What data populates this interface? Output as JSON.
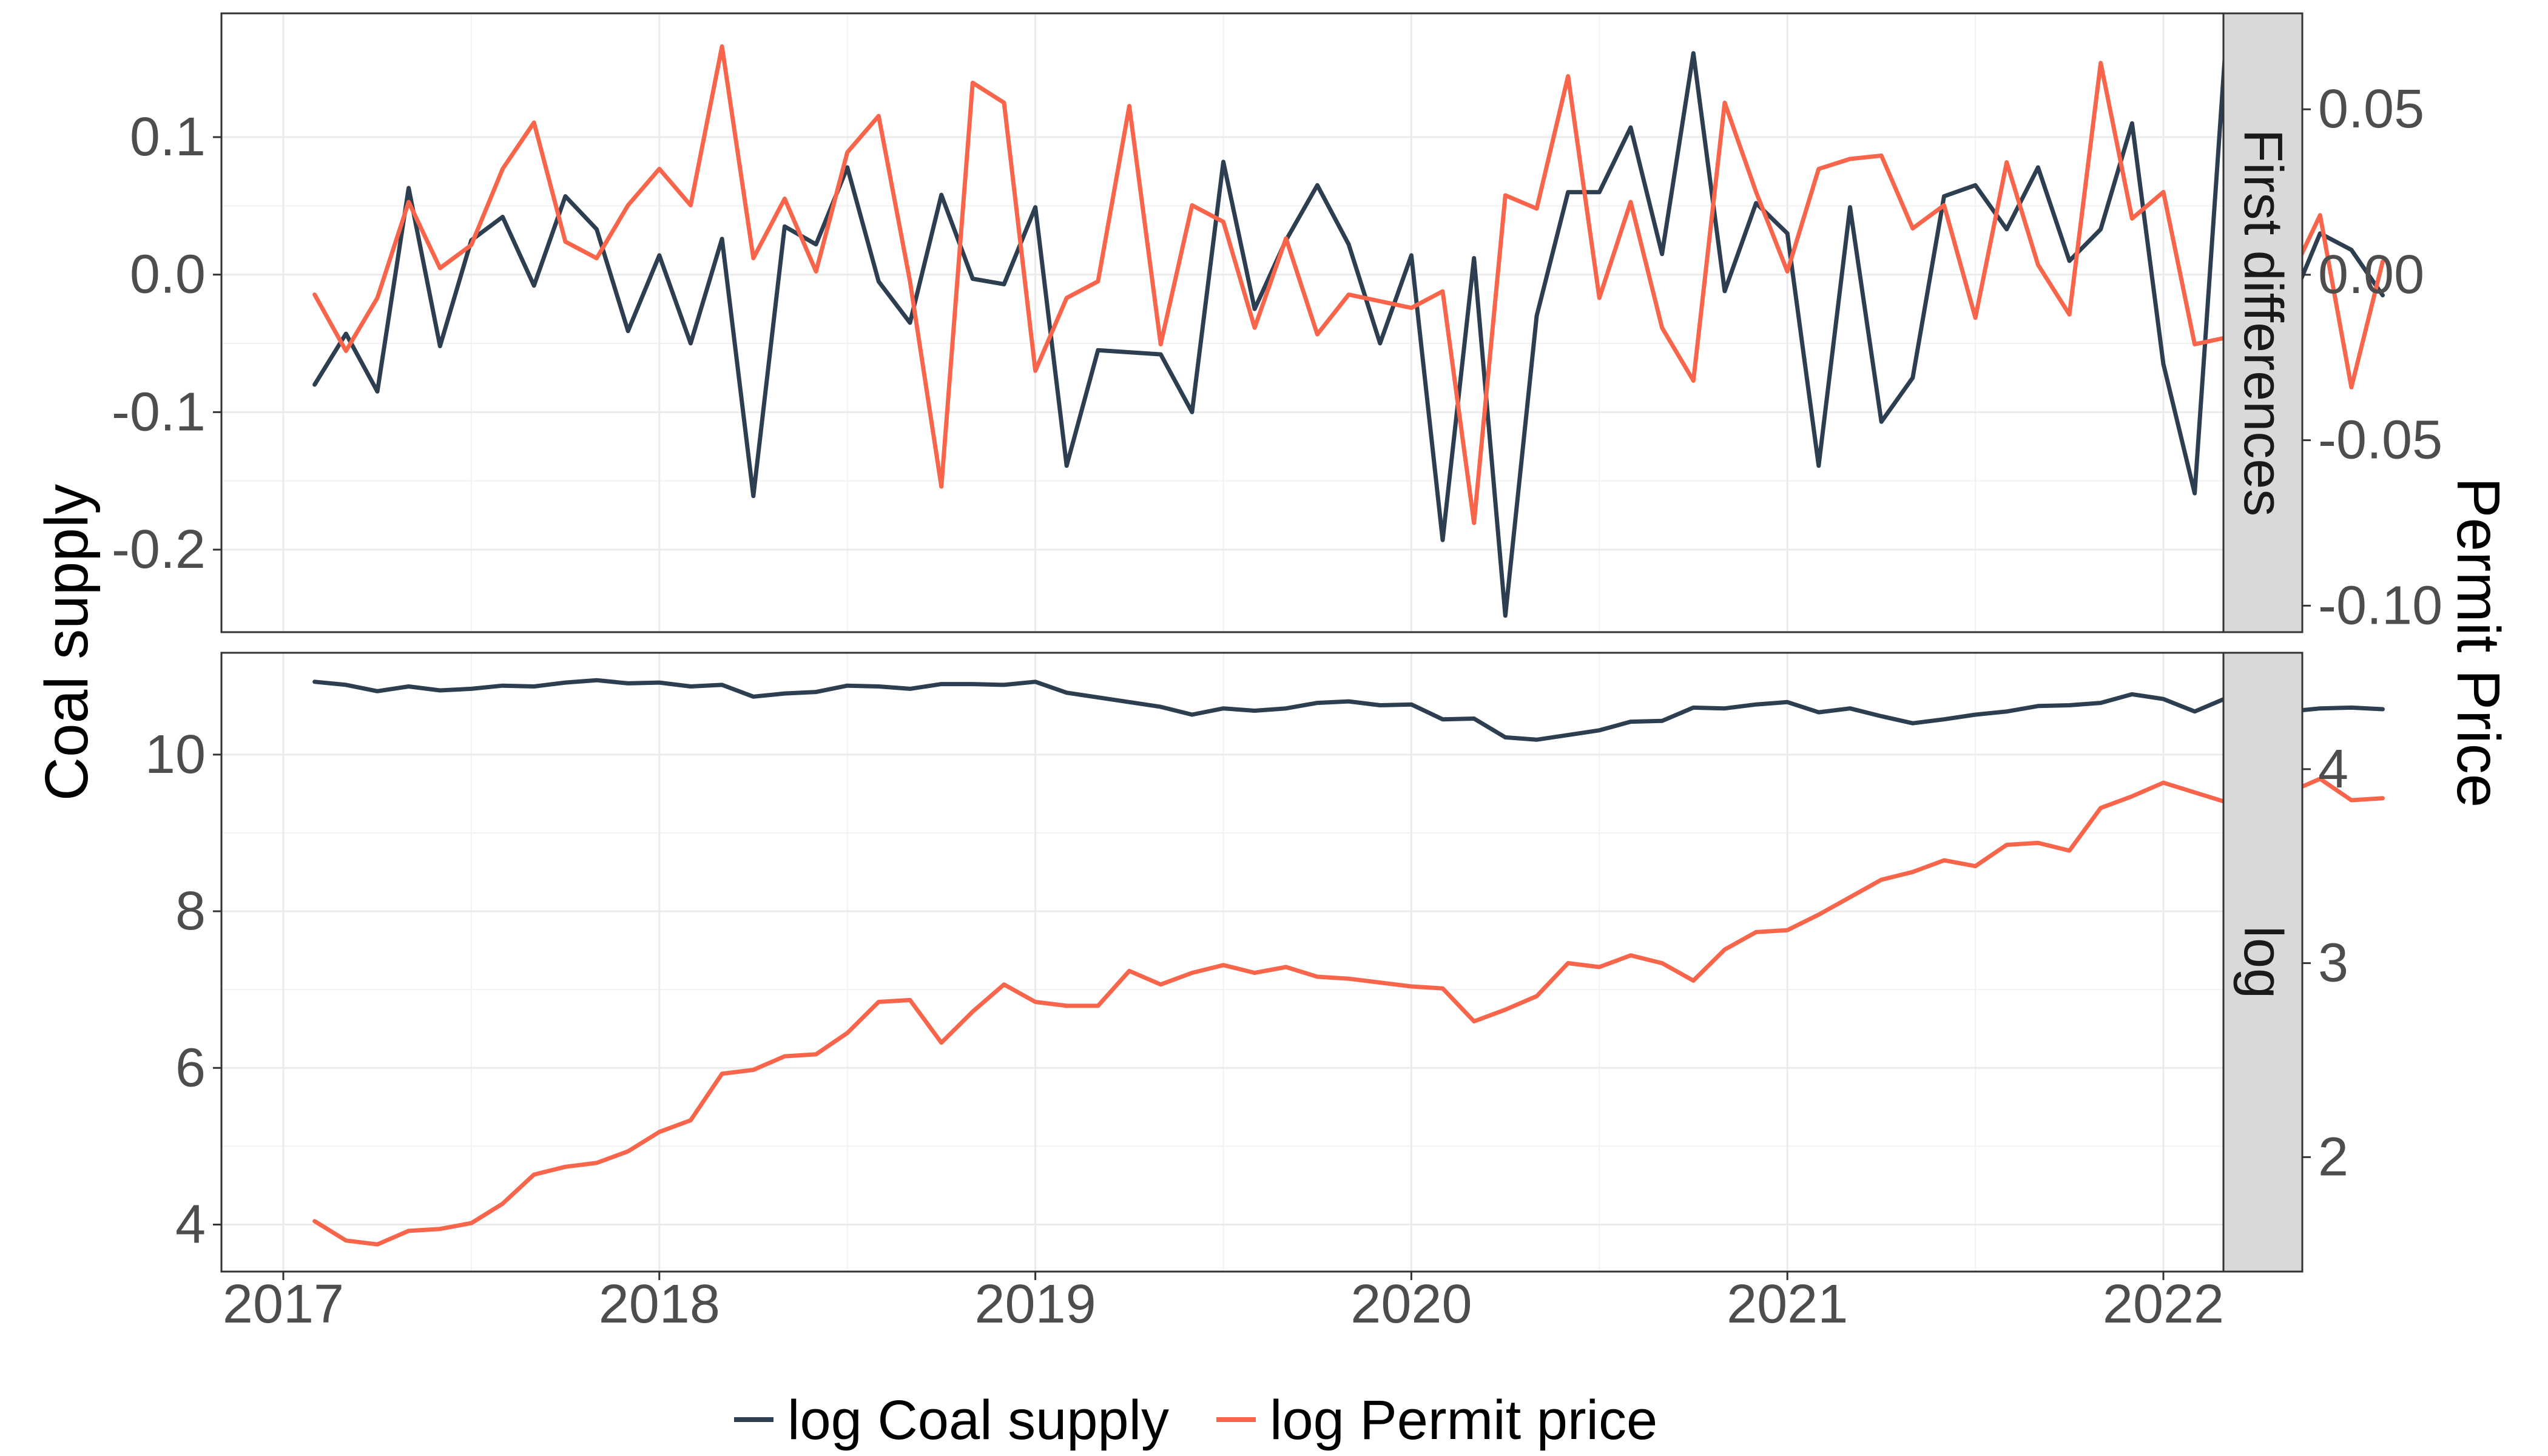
{
  "chart_data": {
    "type": "line",
    "y_left_title": "Coal supply",
    "y_right_title": "Permit Price",
    "x_ticks": [
      "2017",
      "2018",
      "2019",
      "2020",
      "2021",
      "2022"
    ],
    "legend": [
      {
        "label": "log Coal supply",
        "color": "#2c3e50"
      },
      {
        "label": "log Permit price",
        "color": "#f8654a"
      }
    ],
    "colors": {
      "coal": "#2c3e50",
      "permit": "#f8654a"
    },
    "panels": [
      {
        "id": "first-differences",
        "strip": "First differences",
        "left_ylim": [
          -0.26,
          0.19
        ],
        "left_ticks": [
          {
            "v": 0.1,
            "label": "0.1"
          },
          {
            "v": 0.0,
            "label": "0.0"
          },
          {
            "v": -0.1,
            "label": "-0.1"
          },
          {
            "v": -0.2,
            "label": "-0.2"
          }
        ],
        "right_ylim": [
          -0.108,
          0.079
        ],
        "right_ticks": [
          {
            "v": 0.05,
            "label": "0.05"
          },
          {
            "v": 0.0,
            "label": "0.00"
          },
          {
            "v": -0.05,
            "label": "-0.05"
          },
          {
            "v": -0.1,
            "label": "-0.10"
          }
        ],
        "series": [
          {
            "name": "log Coal supply",
            "axis": "left",
            "color": "#2c3e50",
            "x": [
              "2017-02",
              "2017-03",
              "2017-04",
              "2017-05",
              "2017-06",
              "2017-07",
              "2017-08",
              "2017-09",
              "2017-10",
              "2017-11",
              "2017-12",
              "2018-01",
              "2018-02",
              "2018-03",
              "2018-04",
              "2018-05",
              "2018-06",
              "2018-07",
              "2018-08",
              "2018-09",
              "2018-10",
              "2018-11",
              "2018-12",
              "2019-01",
              "2019-02",
              "2019-03",
              "2019-05",
              "2019-06",
              "2019-07",
              "2019-08",
              "2019-09",
              "2019-10",
              "2019-11",
              "2019-12",
              "2020-01",
              "2020-02",
              "2020-03",
              "2020-04",
              "2020-05",
              "2020-06",
              "2020-07",
              "2020-08",
              "2020-09",
              "2020-10",
              "2020-11",
              "2020-12",
              "2021-01",
              "2021-02",
              "2021-03",
              "2021-04",
              "2021-05",
              "2021-06",
              "2021-07",
              "2021-08",
              "2021-09",
              "2021-10",
              "2021-11",
              "2021-12",
              "2022-01",
              "2022-02",
              "2022-03",
              "2022-04",
              "2022-05",
              "2022-06",
              "2022-07",
              "2022-08"
            ],
            "y": [
              -0.08,
              -0.043,
              -0.085,
              0.063,
              -0.052,
              0.025,
              0.042,
              -0.008,
              0.057,
              0.033,
              -0.041,
              0.014,
              -0.05,
              0.026,
              -0.161,
              0.035,
              0.022,
              0.078,
              -0.005,
              -0.035,
              0.058,
              -0.003,
              -0.007,
              0.049,
              -0.139,
              -0.055,
              -0.058,
              -0.1,
              0.082,
              -0.025,
              0.025,
              0.065,
              0.022,
              -0.05,
              0.014,
              -0.193,
              0.012,
              -0.248,
              -0.03,
              0.06,
              0.06,
              0.107,
              0.015,
              0.161,
              -0.012,
              0.052,
              0.03,
              -0.139,
              0.049,
              -0.107,
              -0.075,
              0.057,
              0.065,
              0.033,
              0.078,
              0.01,
              0.033,
              0.11,
              -0.065,
              -0.159,
              0.171,
              -0.157,
              -0.025,
              0.03,
              0.018,
              -0.015
            ]
          },
          {
            "name": "log Permit price",
            "axis": "right",
            "color": "#f8654a",
            "x": [
              "2017-02",
              "2017-03",
              "2017-04",
              "2017-05",
              "2017-06",
              "2017-07",
              "2017-08",
              "2017-09",
              "2017-10",
              "2017-11",
              "2017-12",
              "2018-01",
              "2018-02",
              "2018-03",
              "2018-04",
              "2018-05",
              "2018-06",
              "2018-07",
              "2018-08",
              "2018-09",
              "2018-10",
              "2018-11",
              "2018-12",
              "2019-01",
              "2019-02",
              "2019-03",
              "2019-04",
              "2019-05",
              "2019-06",
              "2019-07",
              "2019-08",
              "2019-09",
              "2019-10",
              "2019-11",
              "2019-12",
              "2020-01",
              "2020-02",
              "2020-03",
              "2020-04",
              "2020-05",
              "2020-06",
              "2020-07",
              "2020-08",
              "2020-09",
              "2020-10",
              "2020-11",
              "2020-12",
              "2021-01",
              "2021-02",
              "2021-03",
              "2021-04",
              "2021-05",
              "2021-06",
              "2021-07",
              "2021-08",
              "2021-09",
              "2021-10",
              "2021-11",
              "2021-12",
              "2022-01",
              "2022-02",
              "2022-03",
              "2022-04",
              "2022-05",
              "2022-06",
              "2022-07",
              "2022-08"
            ],
            "y": [
              -0.006,
              -0.023,
              -0.007,
              0.022,
              0.002,
              0.009,
              0.032,
              0.046,
              0.01,
              0.005,
              0.021,
              0.032,
              0.021,
              0.069,
              0.005,
              0.023,
              0.001,
              0.037,
              0.048,
              -0.002,
              -0.064,
              0.058,
              0.052,
              -0.029,
              -0.007,
              -0.002,
              0.051,
              -0.021,
              0.021,
              0.016,
              -0.016,
              0.011,
              -0.018,
              -0.006,
              -0.008,
              -0.01,
              -0.005,
              -0.075,
              0.024,
              0.02,
              0.06,
              -0.007,
              0.022,
              -0.016,
              -0.032,
              0.052,
              0.025,
              0.001,
              0.032,
              0.035,
              0.036,
              0.014,
              0.021,
              -0.013,
              0.034,
              0.003,
              -0.012,
              0.064,
              0.017,
              0.025,
              -0.021,
              -0.019,
              0.025,
              -0.002,
              0.018,
              -0.034,
              0.004
            ]
          }
        ]
      },
      {
        "id": "log",
        "strip": "log",
        "left_ylim": [
          3.4,
          11.3
        ],
        "left_ticks": [
          {
            "v": 10,
            "label": "10"
          },
          {
            "v": 8,
            "label": "8"
          },
          {
            "v": 6,
            "label": "6"
          },
          {
            "v": 4,
            "label": "4"
          }
        ],
        "right_ylim": [
          1.41,
          4.6
        ],
        "right_ticks": [
          {
            "v": 4,
            "label": "4"
          },
          {
            "v": 3,
            "label": "3"
          },
          {
            "v": 2,
            "label": "2"
          }
        ],
        "series": [
          {
            "name": "log Coal supply",
            "axis": "left",
            "color": "#2c3e50",
            "x": [
              "2017-02",
              "2017-03",
              "2017-04",
              "2017-05",
              "2017-06",
              "2017-07",
              "2017-08",
              "2017-09",
              "2017-10",
              "2017-11",
              "2017-12",
              "2018-01",
              "2018-02",
              "2018-03",
              "2018-04",
              "2018-05",
              "2018-06",
              "2018-07",
              "2018-08",
              "2018-09",
              "2018-10",
              "2018-11",
              "2018-12",
              "2019-01",
              "2019-02",
              "2019-03",
              "2019-04",
              "2019-05",
              "2019-06",
              "2019-07",
              "2019-08",
              "2019-09",
              "2019-10",
              "2019-11",
              "2019-12",
              "2020-01",
              "2020-02",
              "2020-03",
              "2020-04",
              "2020-05",
              "2020-06",
              "2020-07",
              "2020-08",
              "2020-09",
              "2020-10",
              "2020-11",
              "2020-12",
              "2021-01",
              "2021-02",
              "2021-03",
              "2021-04",
              "2021-05",
              "2021-06",
              "2021-07",
              "2021-08",
              "2021-09",
              "2021-10",
              "2021-11",
              "2021-12",
              "2022-01",
              "2022-02",
              "2022-03",
              "2022-04",
              "2022-05",
              "2022-06",
              "2022-07",
              "2022-08"
            ],
            "y": [
              10.93,
              10.89,
              10.81,
              10.87,
              10.82,
              10.84,
              10.88,
              10.87,
              10.92,
              10.95,
              10.91,
              10.92,
              10.87,
              10.89,
              10.74,
              10.78,
              10.8,
              10.88,
              10.87,
              10.84,
              10.9,
              10.9,
              10.89,
              10.93,
              10.79,
              10.73,
              10.67,
              10.61,
              10.51,
              10.59,
              10.56,
              10.59,
              10.66,
              10.68,
              10.63,
              10.64,
              10.45,
              10.46,
              10.22,
              10.19,
              10.25,
              10.31,
              10.42,
              10.43,
              10.6,
              10.59,
              10.64,
              10.67,
              10.54,
              10.59,
              10.49,
              10.4,
              10.45,
              10.51,
              10.55,
              10.62,
              10.63,
              10.66,
              10.77,
              10.71,
              10.55,
              10.72,
              10.58,
              10.55,
              10.59,
              10.6,
              10.58
            ]
          },
          {
            "name": "log Permit price",
            "axis": "right",
            "color": "#f8654a",
            "x": [
              "2017-02",
              "2017-03",
              "2017-04",
              "2017-05",
              "2017-06",
              "2017-07",
              "2017-08",
              "2017-09",
              "2017-10",
              "2017-11",
              "2017-12",
              "2018-01",
              "2018-02",
              "2018-03",
              "2018-04",
              "2018-05",
              "2018-06",
              "2018-07",
              "2018-08",
              "2018-09",
              "2018-10",
              "2018-11",
              "2018-12",
              "2019-01",
              "2019-02",
              "2019-03",
              "2019-04",
              "2019-05",
              "2019-06",
              "2019-07",
              "2019-08",
              "2019-09",
              "2019-10",
              "2019-11",
              "2019-12",
              "2020-01",
              "2020-02",
              "2020-03",
              "2020-04",
              "2020-05",
              "2020-06",
              "2020-07",
              "2020-08",
              "2020-09",
              "2020-10",
              "2020-11",
              "2020-12",
              "2021-01",
              "2021-02",
              "2021-03",
              "2021-04",
              "2021-05",
              "2021-06",
              "2021-07",
              "2021-08",
              "2021-09",
              "2021-10",
              "2021-11",
              "2021-12",
              "2022-01",
              "2022-02",
              "2022-03",
              "2022-04",
              "2022-05",
              "2022-06",
              "2022-07",
              "2022-08"
            ],
            "y": [
              1.67,
              1.57,
              1.55,
              1.62,
              1.63,
              1.66,
              1.76,
              1.91,
              1.95,
              1.97,
              2.03,
              2.13,
              2.19,
              2.43,
              2.45,
              2.52,
              2.53,
              2.64,
              2.8,
              2.81,
              2.59,
              2.75,
              2.89,
              2.8,
              2.78,
              2.78,
              2.96,
              2.89,
              2.95,
              2.99,
              2.95,
              2.98,
              2.93,
              2.92,
              2.9,
              2.88,
              2.87,
              2.7,
              2.76,
              2.83,
              3.0,
              2.98,
              3.04,
              3.0,
              2.91,
              3.07,
              3.16,
              3.17,
              3.25,
              3.34,
              3.43,
              3.47,
              3.53,
              3.5,
              3.61,
              3.62,
              3.58,
              3.8,
              3.86,
              3.93,
              3.88,
              3.83,
              3.89,
              3.88,
              3.95,
              3.84,
              3.85
            ]
          }
        ]
      }
    ]
  }
}
